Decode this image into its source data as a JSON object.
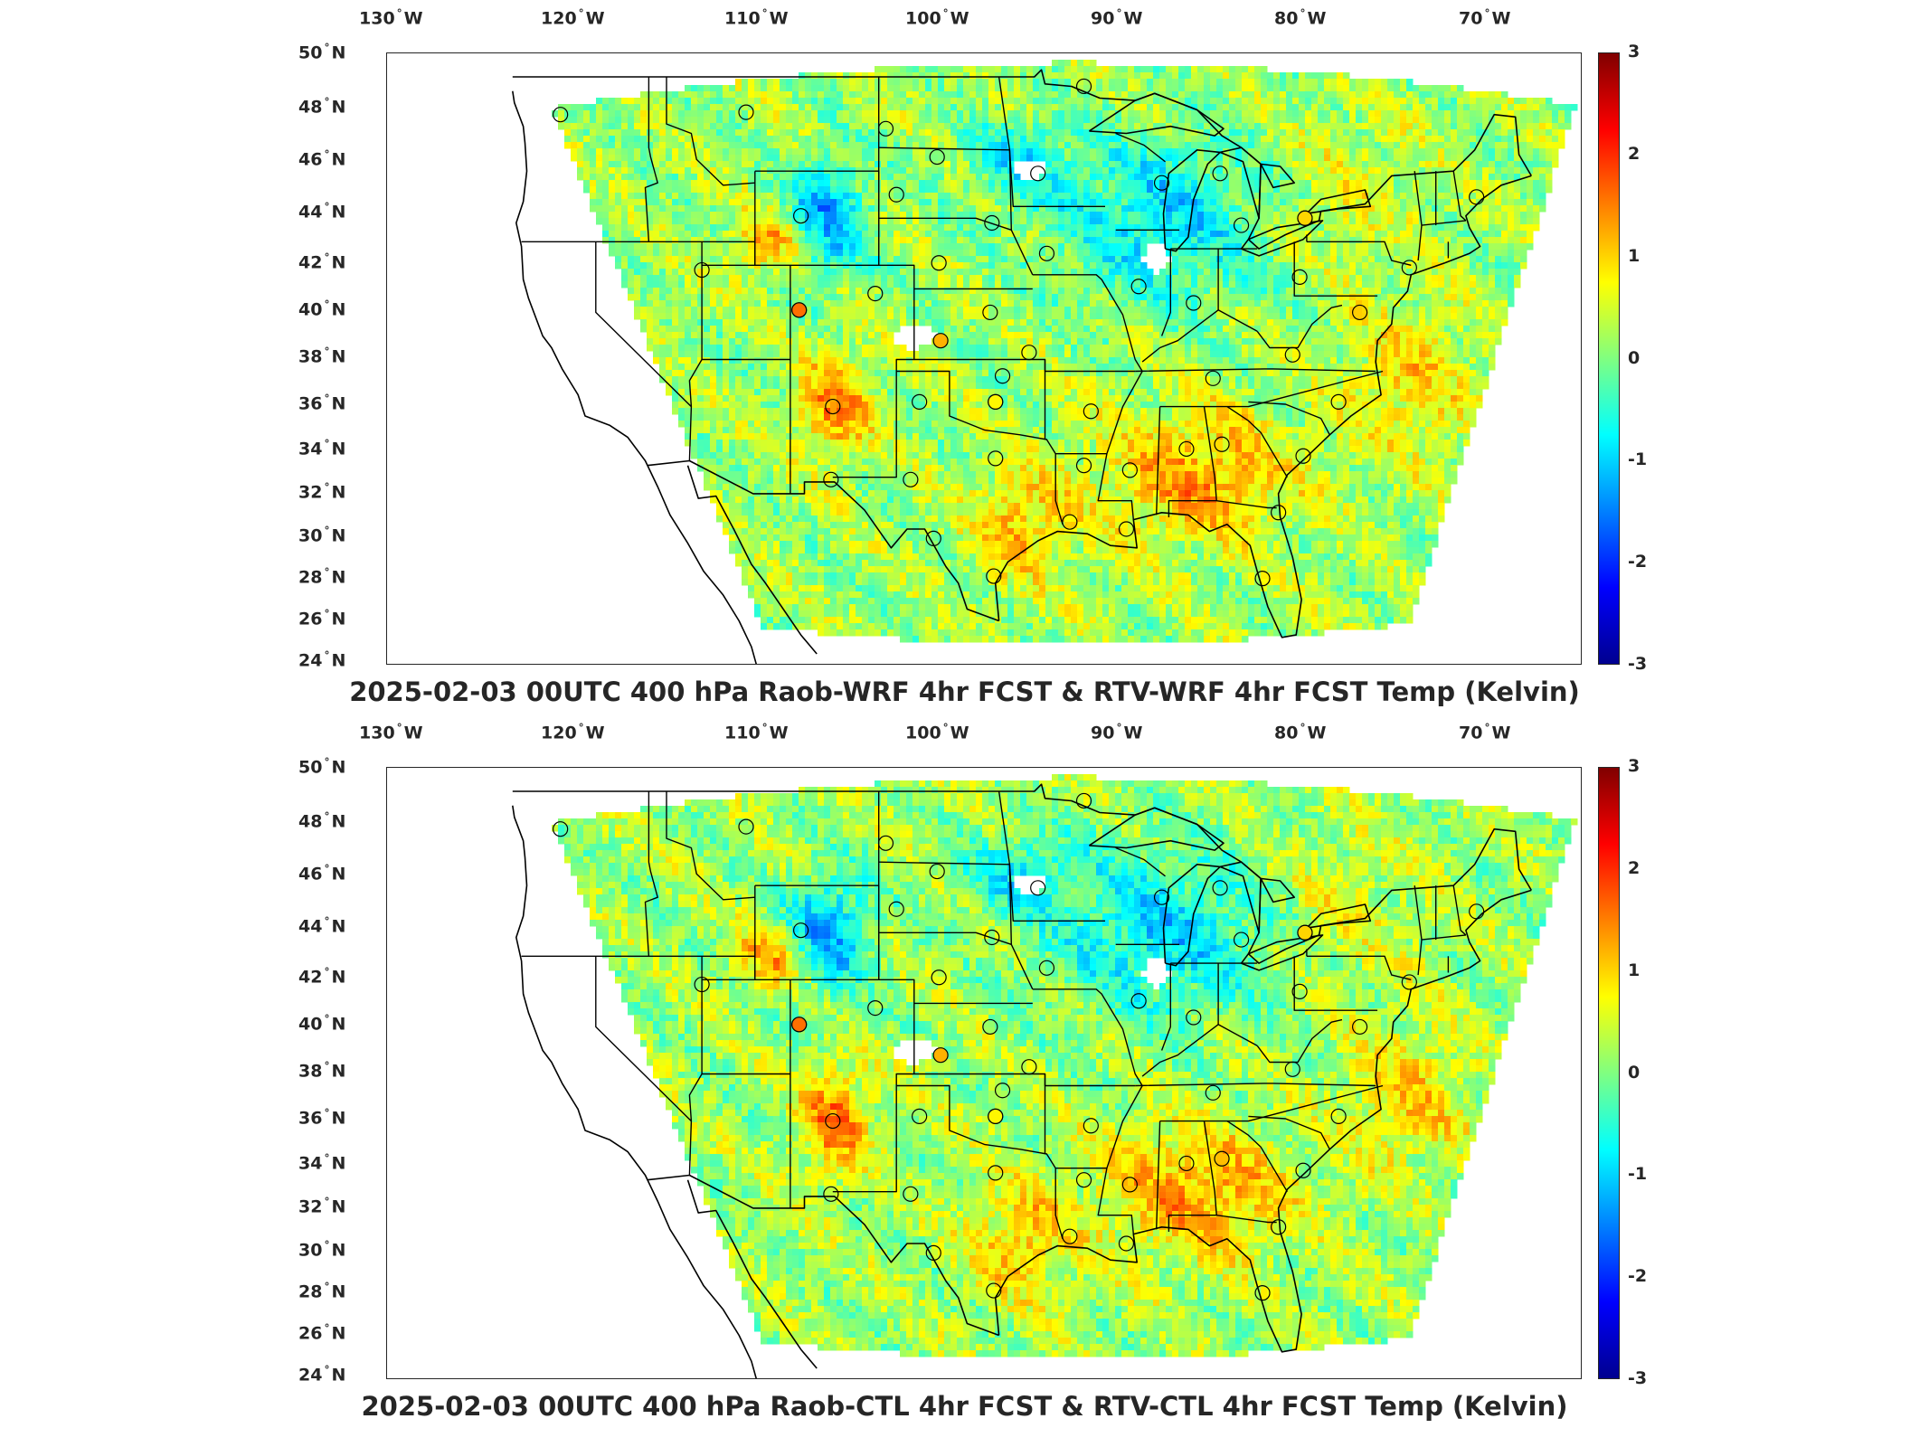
{
  "panels": [
    {
      "id": "top",
      "title": "2025-02-03 00UTC 400 hPa Raob-WRF 4hr FCST & RTV-WRF 4hr FCST Temp (Kelvin)"
    },
    {
      "id": "bottom",
      "title": "2025-02-03 00UTC 400 hPa Raob-CTL 4hr FCST & RTV-CTL 4hr FCST Temp (Kelvin)"
    }
  ],
  "axes": {
    "lon_ticks": [
      "130",
      "120",
      "110",
      "100",
      "90",
      "80",
      "70"
    ],
    "lon_suffix": "W",
    "lat_ticks": [
      "50",
      "48",
      "46",
      "44",
      "42",
      "40",
      "38",
      "36",
      "34",
      "32",
      "30",
      "28",
      "26",
      "24"
    ],
    "lat_suffix": "N",
    "degree_symbol": "°"
  },
  "colorbar": {
    "ticks": [
      "3",
      "2",
      "1",
      "0",
      "-1",
      "-2",
      "-3"
    ],
    "range": [
      -3,
      3
    ],
    "colormap": "jet"
  },
  "stations": [
    {
      "lon": -122.0,
      "lat": 47.4
    },
    {
      "lon": -111.5,
      "lat": 47.5
    },
    {
      "lon": -103.6,
      "lat": 46.8
    },
    {
      "lon": -100.7,
      "lat": 45.6
    },
    {
      "lon": -95.0,
      "lat": 44.9
    },
    {
      "lon": -92.4,
      "lat": 48.6
    },
    {
      "lon": -108.4,
      "lat": 43.1
    },
    {
      "lon": -103.0,
      "lat": 44.0
    },
    {
      "lon": -97.6,
      "lat": 42.8
    },
    {
      "lon": -100.6,
      "lat": 41.1
    },
    {
      "lon": -94.5,
      "lat": 41.5
    },
    {
      "lon": -89.3,
      "lat": 40.1
    },
    {
      "lon": -88.0,
      "lat": 44.5
    },
    {
      "lon": -84.7,
      "lat": 44.9
    },
    {
      "lon": -83.5,
      "lat": 42.7
    },
    {
      "lon": -79.9,
      "lat": 43.0
    },
    {
      "lon": -80.2,
      "lat": 40.5
    },
    {
      "lon": -86.2,
      "lat": 39.4
    },
    {
      "lon": -97.7,
      "lat": 39.0
    },
    {
      "lon": -95.5,
      "lat": 37.3
    },
    {
      "lon": -97.0,
      "lat": 36.3
    },
    {
      "lon": -92.0,
      "lat": 34.8
    },
    {
      "lon": -89.8,
      "lat": 32.3
    },
    {
      "lon": -92.4,
      "lat": 32.5
    },
    {
      "lon": -86.6,
      "lat": 33.2
    },
    {
      "lon": -84.6,
      "lat": 33.4
    },
    {
      "lon": -80.0,
      "lat": 32.9
    },
    {
      "lon": -81.4,
      "lat": 30.5
    },
    {
      "lon": -82.3,
      "lat": 27.7
    },
    {
      "lon": -78.0,
      "lat": 35.2
    },
    {
      "lon": -76.8,
      "lat": 39.0
    },
    {
      "lon": -74.0,
      "lat": 40.9
    },
    {
      "lon": -70.2,
      "lat": 43.9
    },
    {
      "lon": -80.6,
      "lat": 37.2
    },
    {
      "lon": -85.1,
      "lat": 36.2
    },
    {
      "lon": -97.4,
      "lat": 35.2
    },
    {
      "lon": -101.7,
      "lat": 35.2
    },
    {
      "lon": -106.6,
      "lat": 35.0
    },
    {
      "lon": -106.7,
      "lat": 31.9
    },
    {
      "lon": -102.2,
      "lat": 31.9
    },
    {
      "lon": -97.4,
      "lat": 32.8
    },
    {
      "lon": -100.9,
      "lat": 29.4
    },
    {
      "lon": -97.5,
      "lat": 27.8
    },
    {
      "lon": -93.2,
      "lat": 30.1
    },
    {
      "lon": -90.0,
      "lat": 29.8
    },
    {
      "lon": -108.5,
      "lat": 39.1
    },
    {
      "lon": -104.2,
      "lat": 39.8
    },
    {
      "lon": -114.0,
      "lat": 40.8
    }
  ],
  "highlight_stations": [
    {
      "lon": -108.5,
      "lat": 39.1,
      "value": 1.6
    },
    {
      "lon": -100.5,
      "lat": 37.8,
      "value": 1.2
    },
    {
      "lon": -97.4,
      "lat": 35.2,
      "value": 0.8
    },
    {
      "lon": -79.9,
      "lat": 43.0,
      "value": 1.0
    }
  ]
}
